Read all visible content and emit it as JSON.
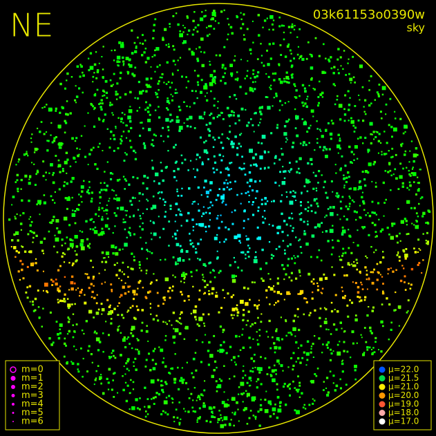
{
  "direction": "NE",
  "image_id": "03k61153o0390w",
  "layer": "sky",
  "magnitude_legend": [
    {
      "label": "m=0",
      "hollow": true
    },
    {
      "label": "m=1"
    },
    {
      "label": "m=2"
    },
    {
      "label": "m=3"
    },
    {
      "label": "m=4"
    },
    {
      "label": "m=5"
    },
    {
      "label": "m=6"
    }
  ],
  "magnitude_color": "#ff00ff",
  "brightness_legend": [
    {
      "label": "μ=22.0",
      "color": "#0055ff"
    },
    {
      "label": "μ=21.5",
      "color": "#00dd44"
    },
    {
      "label": "μ=21.0",
      "color": "#ffee00"
    },
    {
      "label": "μ=20.0",
      "color": "#ff9900"
    },
    {
      "label": "μ=19.0",
      "color": "#ff5533"
    },
    {
      "label": "μ=18.0",
      "color": "#ffaaaa"
    },
    {
      "label": "μ=17.0",
      "color": "#ffffff"
    }
  ]
}
